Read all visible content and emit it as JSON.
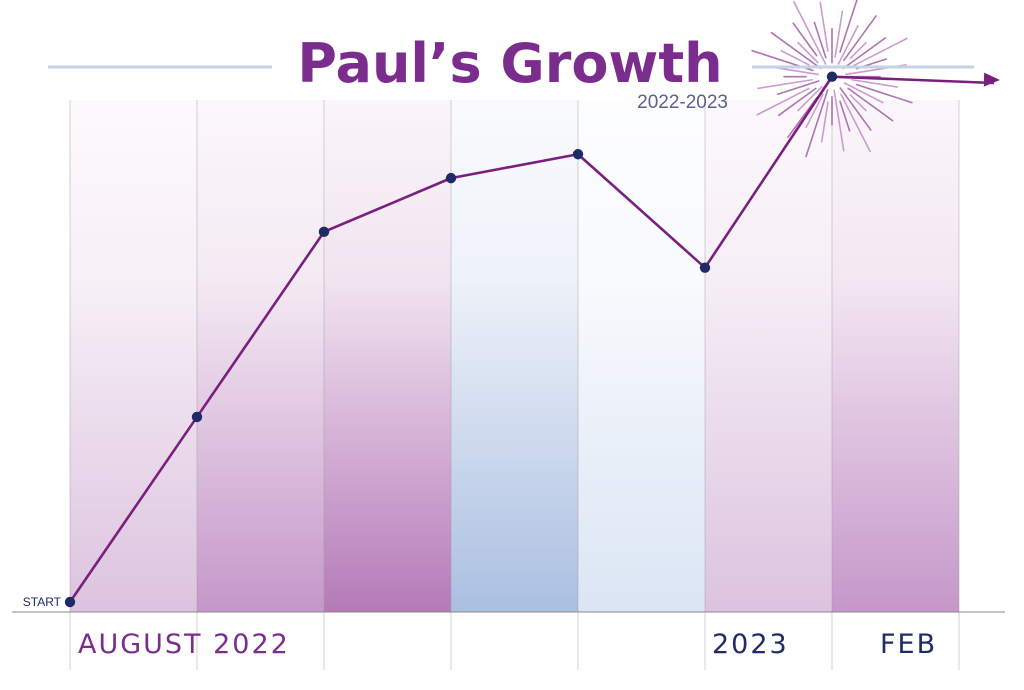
{
  "chart_data": {
    "type": "line",
    "title": "Paul’s Growth",
    "subtitle": "2022-2023",
    "start_label": "START",
    "x_labels": [
      {
        "text": "AUGUST 2022",
        "color": "#7b2d8e"
      },
      {
        "text": "2023",
        "color": "#1f2a66"
      },
      {
        "text": "FEB",
        "color": "#1f2a66"
      }
    ],
    "x": [
      0,
      1,
      2,
      3,
      4,
      5,
      6
    ],
    "values": [
      0,
      31,
      62,
      71,
      75,
      56,
      88
    ],
    "ylim": [
      0,
      100
    ],
    "trend_arrow": true,
    "grid": true,
    "colors": {
      "title": "#7b2d8e",
      "line": "#7b1f7e",
      "point": "#1f2a66",
      "subtitle": "#5a6288",
      "rule": "#c5d3e8"
    },
    "bands": [
      {
        "top": "#f7f0f7",
        "bottom": "#dcc3df"
      },
      {
        "top": "#f4eaf3",
        "bottom": "#c597c9"
      },
      {
        "top": "#f1e4f0",
        "bottom": "#b57ab8"
      },
      {
        "top": "#eef2f9",
        "bottom": "#aabfe1"
      },
      {
        "top": "#f8fafd",
        "bottom": "#dbe5f4"
      },
      {
        "top": "#f6eef6",
        "bottom": "#dcc3df"
      },
      {
        "top": "#f3e7f2",
        "bottom": "#c597c9"
      }
    ]
  }
}
